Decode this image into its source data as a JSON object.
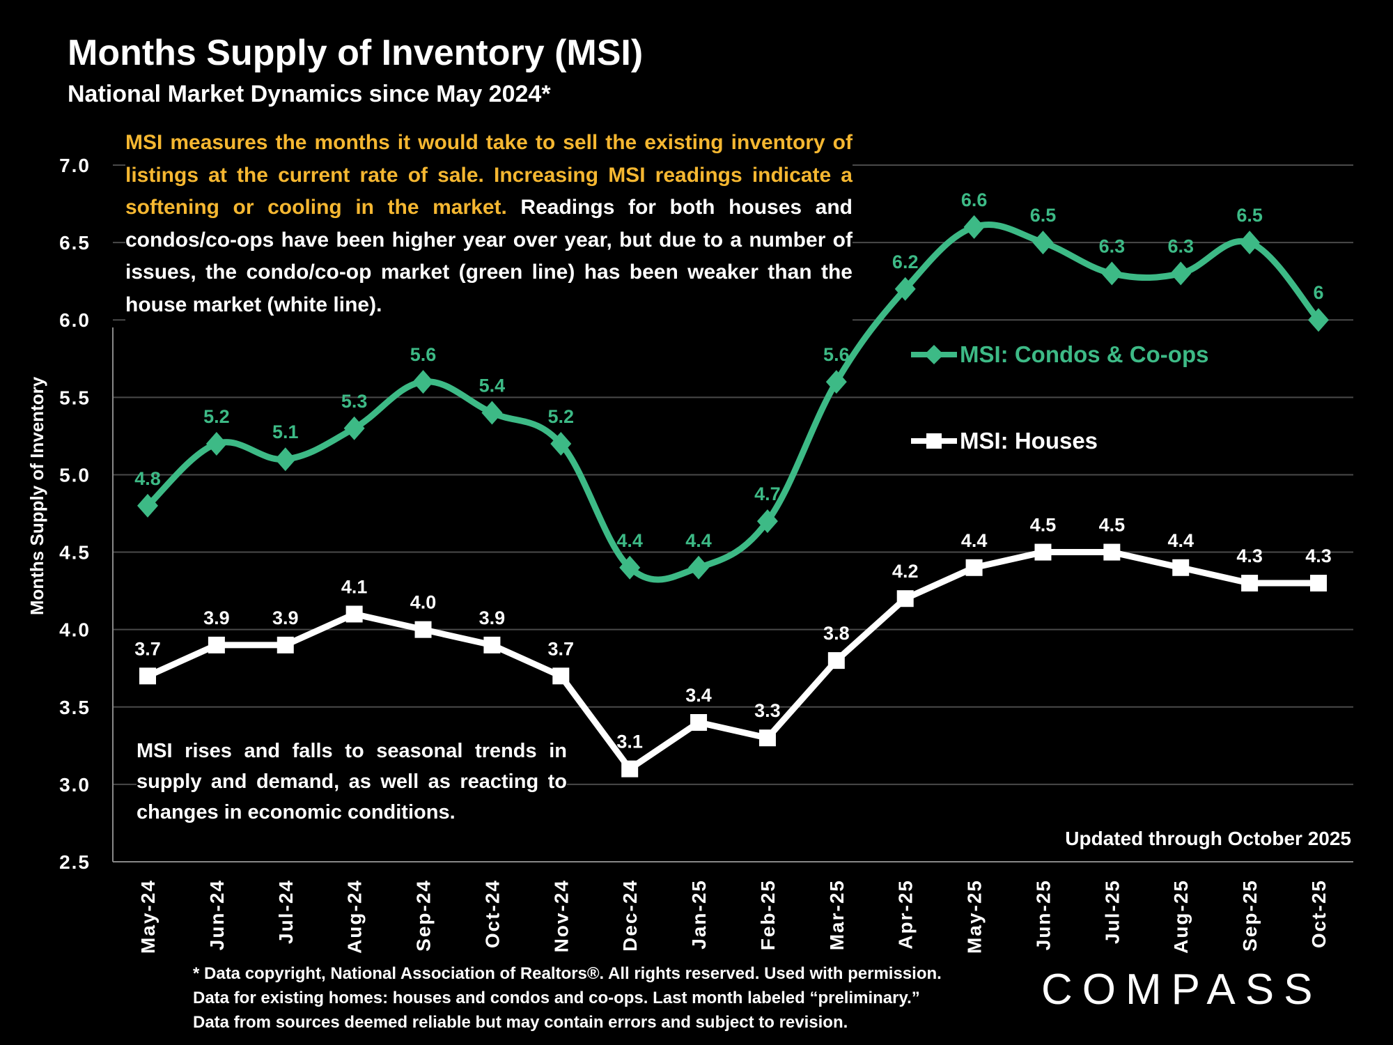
{
  "header": {
    "title": "Months Supply of Inventory (MSI)",
    "subtitle": "National Market Dynamics since May 2024*"
  },
  "intro": {
    "highlight": "MSI measures the months it would take to sell the existing inventory of listings at the current rate of sale. Increasing MSI readings indicate a softening or cooling in the market.",
    "body": " Readings for both houses and condos/co-ops have been higher year over year, but due to a number of issues, the condo/co-op market (green line) has been weaker than the house market (white line)."
  },
  "note": "MSI rises and falls to seasonal trends in supply and demand, as well as reacting to changes in economic conditions.",
  "updated": "Updated through October 2025",
  "footnote": {
    "line1": "* Data copyright, National Association of Realtors®. All rights reserved. Used with permission.",
    "line2": "Data for existing homes: houses and condos and co-ops. Last month labeled “preliminary.”",
    "line3": "Data from sources deemed reliable but may contain errors and subject to revision."
  },
  "logo": "COMPASS",
  "colors": {
    "condo": "#3dba86",
    "house": "#ffffff",
    "highlight": "#f5b731",
    "grid": "#4a4a4a"
  },
  "chart_data": {
    "type": "line",
    "title": "Months Supply of Inventory (MSI)",
    "xlabel": "",
    "ylabel": "Months Supply of Inventory",
    "ylim": [
      2.5,
      7.0
    ],
    "yticks": [
      "2.5",
      "3.0",
      "3.5",
      "4.0",
      "4.5",
      "5.0",
      "5.5",
      "6.0",
      "6.5",
      "7.0"
    ],
    "grid": true,
    "legend_position": "center-right",
    "categories": [
      "May-24",
      "Jun-24",
      "Jul-24",
      "Aug-24",
      "Sep-24",
      "Oct-24",
      "Nov-24",
      "Dec-24",
      "Jan-25",
      "Feb-25",
      "Mar-25",
      "Apr-25",
      "May-25",
      "Jun-25",
      "Jul-25",
      "Aug-25",
      "Sep-25",
      "Oct-25"
    ],
    "series": [
      {
        "name": "MSI:  Condos & Co-ops",
        "marker": "diamond",
        "smooth": true,
        "values": [
          4.8,
          5.2,
          5.1,
          5.3,
          5.6,
          5.4,
          5.2,
          4.4,
          4.4,
          4.7,
          5.6,
          6.2,
          6.6,
          6.5,
          6.3,
          6.3,
          6.5,
          6.0
        ],
        "labels": [
          "4.8",
          "5.2",
          "5.1",
          "5.3",
          "5.6",
          "5.4",
          "5.2",
          "4.4",
          "4.4",
          "4.7",
          "5.6",
          "6.2",
          "6.6",
          "6.5",
          "6.3",
          "6.3",
          "6.5",
          "6"
        ]
      },
      {
        "name": "MSI:  Houses",
        "marker": "square",
        "smooth": false,
        "values": [
          3.7,
          3.9,
          3.9,
          4.1,
          4.0,
          3.9,
          3.7,
          3.1,
          3.4,
          3.3,
          3.8,
          4.2,
          4.4,
          4.5,
          4.5,
          4.4,
          4.3,
          4.3
        ],
        "labels": [
          "3.7",
          "3.9",
          "3.9",
          "4.1",
          "4.0",
          "3.9",
          "3.7",
          "3.1",
          "3.4",
          "3.3",
          "3.8",
          "4.2",
          "4.4",
          "4.5",
          "4.5",
          "4.4",
          "4.3",
          "4.3"
        ]
      }
    ]
  }
}
